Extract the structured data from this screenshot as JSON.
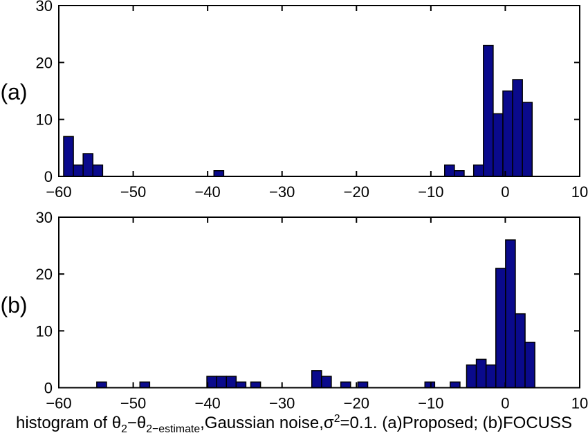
{
  "figure": {
    "background": "#ffffff",
    "bar_fill": "#0a0a8c",
    "bar_stroke": "#000000",
    "axis_color": "#000000",
    "text_color": "#000000"
  },
  "panels": [
    {
      "label": "(a)"
    },
    {
      "label": "(b)"
    }
  ],
  "caption": {
    "seg_prefix": "histogram of θ",
    "seg_sub1": "2",
    "seg_mid1": "−θ",
    "seg_sub2": "2−estimate",
    "seg_mid2": ",Gaussian noise,σ",
    "seg_sup": "2",
    "seg_suffix": "=0.1. (a)Proposed; (b)FOCUSS"
  },
  "chart_data": [
    {
      "type": "bar",
      "panel": "(a)",
      "method": "Proposed",
      "title": "",
      "xlabel": "",
      "ylabel": "",
      "xlim": [
        -60,
        10
      ],
      "ylim": [
        0,
        30
      ],
      "xticks": [
        -60,
        -50,
        -40,
        -30,
        -20,
        -10,
        0,
        10
      ],
      "xtick_labels": [
        "−60",
        "−50",
        "−40",
        "−30",
        "−20",
        "−10",
        "0",
        "10"
      ],
      "yticks": [
        0,
        10,
        20,
        30
      ],
      "ytick_labels": [
        "0",
        "10",
        "20",
        "30"
      ],
      "grid": false,
      "legend": null,
      "bin_width": 1.31,
      "bars": [
        {
          "x": -59.35,
          "count": 7
        },
        {
          "x": -58.04,
          "count": 2
        },
        {
          "x": -56.73,
          "count": 4
        },
        {
          "x": -55.42,
          "count": 2
        },
        {
          "x": -39.15,
          "count": 1
        },
        {
          "x": -8.15,
          "count": 2
        },
        {
          "x": -6.84,
          "count": 1
        },
        {
          "x": -4.25,
          "count": 2
        },
        {
          "x": -2.94,
          "count": 23
        },
        {
          "x": -1.63,
          "count": 11
        },
        {
          "x": -0.32,
          "count": 15
        },
        {
          "x": 0.99,
          "count": 17
        },
        {
          "x": 2.3,
          "count": 13
        }
      ]
    },
    {
      "type": "bar",
      "panel": "(b)",
      "method": "FOCUSS",
      "title": "",
      "xlabel": "",
      "ylabel": "",
      "xlim": [
        -60,
        10
      ],
      "ylim": [
        0,
        30
      ],
      "xticks": [
        -60,
        -50,
        -40,
        -30,
        -20,
        -10,
        0,
        10
      ],
      "xtick_labels": [
        "−60",
        "−50",
        "−40",
        "−30",
        "−20",
        "−10",
        "0",
        "10"
      ],
      "yticks": [
        0,
        10,
        20,
        30
      ],
      "ytick_labels": [
        "0",
        "10",
        "20",
        "30"
      ],
      "grid": false,
      "legend": null,
      "bin_width": 1.31,
      "bars": [
        {
          "x": -54.9,
          "count": 1
        },
        {
          "x": -49.1,
          "count": 1
        },
        {
          "x": -40.1,
          "count": 2
        },
        {
          "x": -38.79,
          "count": 2
        },
        {
          "x": -37.48,
          "count": 2
        },
        {
          "x": -36.17,
          "count": 1
        },
        {
          "x": -34.2,
          "count": 1
        },
        {
          "x": -26.0,
          "count": 3
        },
        {
          "x": -24.69,
          "count": 2
        },
        {
          "x": -22.1,
          "count": 1
        },
        {
          "x": -19.8,
          "count": 1
        },
        {
          "x": -10.8,
          "count": 1
        },
        {
          "x": -7.4,
          "count": 1
        },
        {
          "x": -5.2,
          "count": 4
        },
        {
          "x": -3.89,
          "count": 5
        },
        {
          "x": -2.58,
          "count": 4
        },
        {
          "x": -1.27,
          "count": 21
        },
        {
          "x": 0.04,
          "count": 26
        },
        {
          "x": 1.35,
          "count": 13
        },
        {
          "x": 2.66,
          "count": 8
        }
      ]
    }
  ]
}
